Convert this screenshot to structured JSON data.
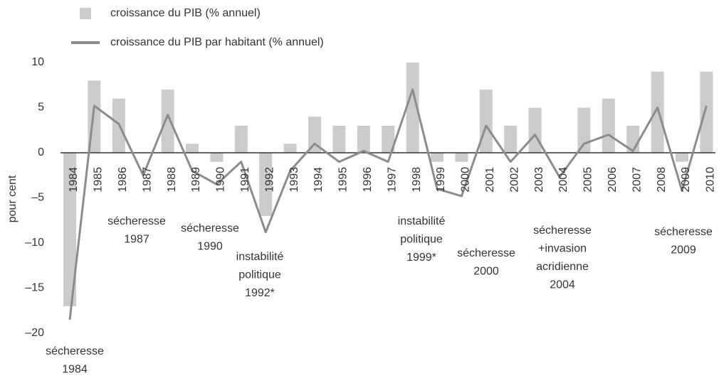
{
  "chart_data": {
    "type": "bar_line",
    "y_label": "pour cent",
    "categories": [
      "1984",
      "1985",
      "1986",
      "1987",
      "1988",
      "1989",
      "1990",
      "1991",
      "1992",
      "1993",
      "1994",
      "1995",
      "1996",
      "1997",
      "1998",
      "1999",
      "2000",
      "2001",
      "2002",
      "2003",
      "2004",
      "2005",
      "2006",
      "2007",
      "2008",
      "2009",
      "2010"
    ],
    "series": [
      {
        "name": "croissance du PIB (% annuel)",
        "kind": "bar",
        "color": "#cccccc",
        "values": [
          -17,
          8,
          6,
          0,
          7,
          1,
          -1,
          3,
          -7,
          1,
          4,
          3,
          3,
          3,
          10,
          -1,
          -1,
          7,
          3,
          5,
          0,
          5,
          6,
          3,
          9,
          -1,
          9
        ]
      },
      {
        "name": "croissance du PIB par habitant (% annuel)",
        "kind": "line",
        "color": "#8c8c8c",
        "values": [
          -18.5,
          5.2,
          3.2,
          -2.5,
          4.2,
          -2,
          -3.5,
          -1,
          -8.8,
          -2,
          1,
          -1,
          0.2,
          -1,
          7,
          -4,
          -4.8,
          3,
          -1,
          2,
          -2.7,
          1,
          2,
          0.2,
          5,
          -4.2,
          5.2
        ]
      }
    ],
    "ylim": [
      -20,
      10
    ],
    "yticks": [
      10,
      5,
      0,
      {
        "value": -5,
        "label": "–5"
      },
      {
        "value": -10,
        "label": "–10"
      },
      {
        "value": -15,
        "label": "–15"
      },
      {
        "value": -20,
        "label": "–20"
      }
    ],
    "grid": false,
    "annotations": [
      [
        "sécheresse",
        "1984"
      ],
      [
        "sécheresse",
        "1987"
      ],
      [
        "sécheresse",
        "1990"
      ],
      [
        "instabilité",
        "politique",
        "1992*"
      ],
      [
        "instabilité",
        "politique",
        "1999*"
      ],
      [
        "sécheresse",
        "2000"
      ],
      [
        "sécheresse",
        "+invasion",
        "acridienne",
        "2004"
      ],
      [
        "sécheresse",
        "2009"
      ]
    ]
  }
}
